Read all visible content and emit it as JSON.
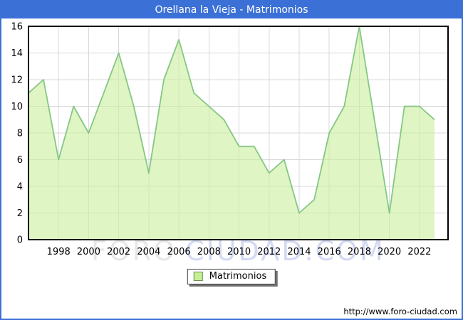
{
  "window": {
    "title": "Orellana la Vieja - Matrimonios"
  },
  "legend": {
    "label": "Matrimonios"
  },
  "footer": {
    "url": "http://www.foro-ciudad.com"
  },
  "watermark": {
    "part1": "FORO",
    "part2": "CIUDAD.COM"
  },
  "colors": {
    "titlebar_blue": "#3b70d6",
    "area_fill": "rgba(203,239,158,0.62)",
    "area_line": "#85c785",
    "gridline": "#d8d8d8",
    "plot_border": "#000000",
    "axis_text": "#000000",
    "legend_swatch": "#c6ee95"
  },
  "chart_data": {
    "type": "area",
    "title": "Orellana la Vieja - Matrimonios",
    "series_name": "Matrimonios",
    "x": [
      1996,
      1997,
      1998,
      1999,
      2000,
      2001,
      2002,
      2003,
      2004,
      2005,
      2006,
      2007,
      2008,
      2009,
      2010,
      2011,
      2012,
      2013,
      2014,
      2015,
      2016,
      2017,
      2018,
      2019,
      2020,
      2021,
      2022,
      2023
    ],
    "values": [
      11,
      12,
      6,
      10,
      8,
      11,
      14,
      10,
      5,
      12,
      15,
      11,
      10,
      9,
      7,
      7,
      5,
      6,
      2,
      3,
      8,
      10,
      16,
      9,
      2,
      10,
      10,
      9
    ],
    "xlabel": "",
    "ylabel": "",
    "ylim": [
      0,
      16
    ],
    "ytick_labels": [
      "0",
      "2",
      "4",
      "6",
      "8",
      "10",
      "12",
      "14",
      "16"
    ],
    "xtick_labels": [
      "1998",
      "2000",
      "2002",
      "2004",
      "2006",
      "2008",
      "2010",
      "2012",
      "2014",
      "2016",
      "2018",
      "2020",
      "2022"
    ],
    "grid": true,
    "legend_position": "bottom-center"
  }
}
